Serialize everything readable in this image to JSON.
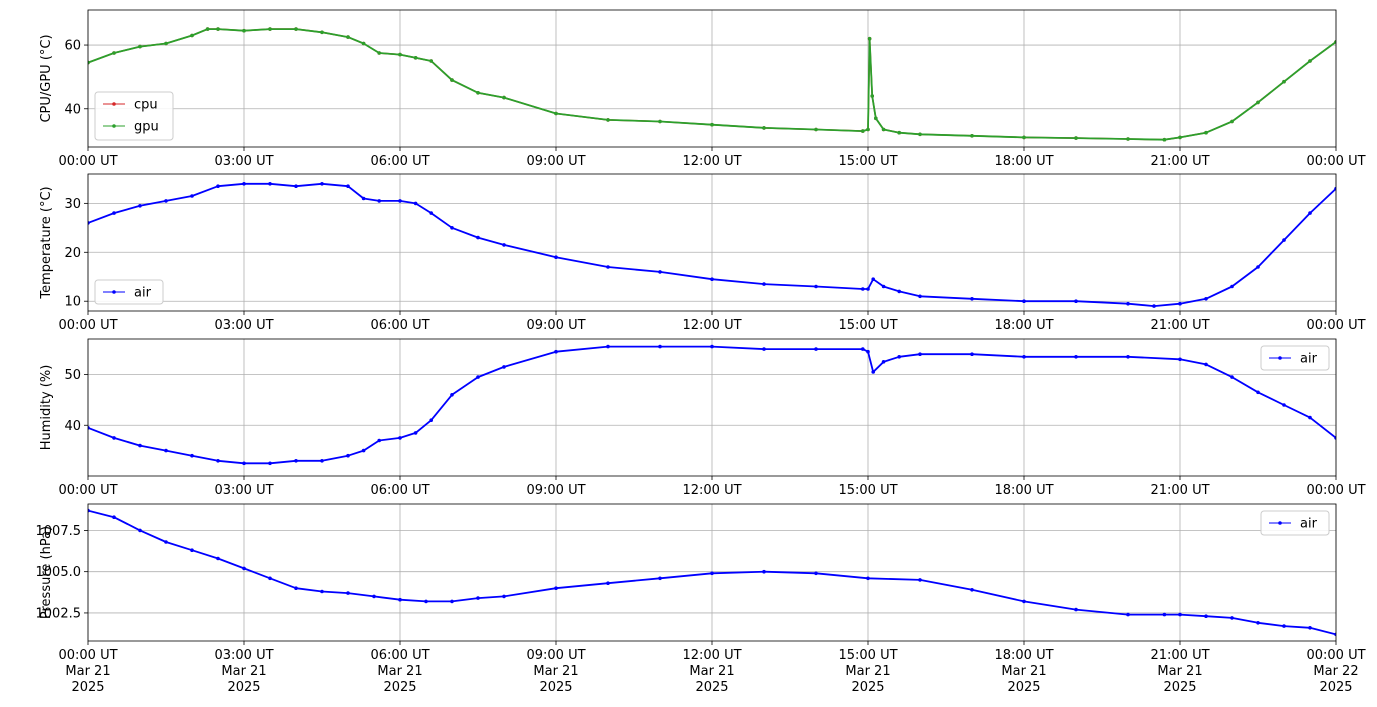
{
  "chart_data": [
    {
      "type": "line",
      "ylabel": "CPU/GPU (°C)",
      "ylim": [
        28,
        71
      ],
      "yticks": [
        40,
        60
      ],
      "grid": true,
      "legend_loc": "lower-left",
      "x_tick_labels": [
        "00:00 UT",
        "03:00 UT",
        "06:00 UT",
        "09:00 UT",
        "12:00 UT",
        "15:00 UT",
        "18:00 UT",
        "21:00 UT",
        "00:00 UT"
      ],
      "series": [
        {
          "name": "cpu",
          "color": "#d62728",
          "marker": "dot",
          "x": [
            0,
            0.5,
            1,
            1.5,
            2,
            2.3,
            2.5,
            3,
            3.5,
            4,
            4.5,
            5,
            5.3,
            5.6,
            6,
            6.3,
            6.6,
            7,
            7.5,
            8,
            9,
            10,
            11,
            12,
            13,
            14,
            14.9,
            15.0,
            15.03,
            15.08,
            15.15,
            15.3,
            15.6,
            16,
            17,
            18,
            19,
            20,
            20.7,
            21,
            21.5,
            22,
            22.5,
            23,
            23.5,
            24
          ],
          "y": [
            54.5,
            57.5,
            59.5,
            60.5,
            63,
            65,
            65,
            64.5,
            65,
            65,
            64,
            62.5,
            60.5,
            57.5,
            57,
            56,
            55,
            49,
            45,
            43.5,
            38.5,
            36.5,
            36,
            35,
            34,
            33.5,
            33,
            33.5,
            62,
            44,
            37,
            33.5,
            32.5,
            32,
            31.5,
            31,
            30.8,
            30.5,
            30.3,
            31,
            32.5,
            36,
            42,
            48.5,
            55,
            61
          ]
        },
        {
          "name": "gpu",
          "color": "#2ca02c",
          "marker": "dot",
          "x": [
            0,
            0.5,
            1,
            1.5,
            2,
            2.3,
            2.5,
            3,
            3.5,
            4,
            4.5,
            5,
            5.3,
            5.6,
            6,
            6.3,
            6.6,
            7,
            7.5,
            8,
            9,
            10,
            11,
            12,
            13,
            14,
            14.9,
            15.0,
            15.03,
            15.08,
            15.15,
            15.3,
            15.6,
            16,
            17,
            18,
            19,
            20,
            20.7,
            21,
            21.5,
            22,
            22.5,
            23,
            23.5,
            24
          ],
          "y": [
            54.5,
            57.5,
            59.5,
            60.5,
            63,
            65,
            65,
            64.5,
            65,
            65,
            64,
            62.5,
            60.5,
            57.5,
            57,
            56,
            55,
            49,
            45,
            43.5,
            38.5,
            36.5,
            36,
            35,
            34,
            33.5,
            33,
            33.5,
            62,
            44,
            37,
            33.5,
            32.5,
            32,
            31.5,
            31,
            30.8,
            30.5,
            30.3,
            31,
            32.5,
            36,
            42,
            48.5,
            55,
            61
          ]
        }
      ]
    },
    {
      "type": "line",
      "ylabel": "Temperature (°C)",
      "ylim": [
        8,
        36
      ],
      "yticks": [
        10,
        20,
        30
      ],
      "grid": true,
      "legend_loc": "lower-left",
      "x_tick_labels": [
        "00:00 UT",
        "03:00 UT",
        "06:00 UT",
        "09:00 UT",
        "12:00 UT",
        "15:00 UT",
        "18:00 UT",
        "21:00 UT",
        "00:00 UT"
      ],
      "series": [
        {
          "name": "air",
          "color": "#0000ff",
          "marker": "dot",
          "x": [
            0,
            0.5,
            1,
            1.5,
            2,
            2.5,
            3,
            3.5,
            4,
            4.5,
            5,
            5.3,
            5.6,
            6,
            6.3,
            6.6,
            7,
            7.5,
            8,
            9,
            10,
            11,
            12,
            13,
            14,
            14.9,
            15.0,
            15.1,
            15.3,
            15.6,
            16,
            17,
            18,
            19,
            20,
            20.5,
            21,
            21.5,
            22,
            22.5,
            23,
            23.5,
            24
          ],
          "y": [
            26,
            28,
            29.5,
            30.5,
            31.5,
            33.5,
            34,
            34,
            33.5,
            34,
            33.5,
            31,
            30.5,
            30.5,
            30,
            28,
            25,
            23,
            21.5,
            19,
            17,
            16,
            14.5,
            13.5,
            13,
            12.5,
            12.5,
            14.5,
            13,
            12,
            11,
            10.5,
            10,
            10,
            9.5,
            9,
            9.5,
            10.5,
            13,
            17,
            22.5,
            28,
            33
          ]
        }
      ]
    },
    {
      "type": "line",
      "ylabel": "Humidity (%)",
      "ylim": [
        30,
        57
      ],
      "yticks": [
        40,
        50
      ],
      "grid": true,
      "legend_loc": "upper-right",
      "x_tick_labels": [
        "00:00 UT",
        "03:00 UT",
        "06:00 UT",
        "09:00 UT",
        "12:00 UT",
        "15:00 UT",
        "18:00 UT",
        "21:00 UT",
        "00:00 UT"
      ],
      "series": [
        {
          "name": "air",
          "color": "#0000ff",
          "marker": "dot",
          "x": [
            0,
            0.5,
            1,
            1.5,
            2,
            2.5,
            3,
            3.5,
            4,
            4.5,
            5,
            5.3,
            5.6,
            6,
            6.3,
            6.6,
            7,
            7.5,
            8,
            9,
            10,
            11,
            12,
            13,
            14,
            14.9,
            15.0,
            15.1,
            15.3,
            15.6,
            16,
            17,
            18,
            19,
            20,
            21,
            21.5,
            22,
            22.5,
            23,
            23.5,
            24
          ],
          "y": [
            39.5,
            37.5,
            36,
            35,
            34,
            33,
            32.5,
            32.5,
            33,
            33,
            34,
            35,
            37,
            37.5,
            38.5,
            41,
            46,
            49.5,
            51.5,
            54.5,
            55.5,
            55.5,
            55.5,
            55,
            55,
            55,
            54.5,
            50.5,
            52.5,
            53.5,
            54,
            54,
            53.5,
            53.5,
            53.5,
            53,
            52,
            49.5,
            46.5,
            44,
            41.5,
            37.5
          ]
        }
      ]
    },
    {
      "type": "line",
      "ylabel": "Pressure (hPa)",
      "ylim": [
        1000.8,
        1009.1
      ],
      "yticks": [
        1002.5,
        1005.0,
        1007.5
      ],
      "ytick_labels": [
        "1002.5",
        "1005.0",
        "1007.5"
      ],
      "grid": true,
      "legend_loc": "upper-right",
      "x_tick_labels": [
        "00:00 UT\nMar 21\n2025",
        "03:00 UT\nMar 21\n2025",
        "06:00 UT\nMar 21\n2025",
        "09:00 UT\nMar 21\n2025",
        "12:00 UT\nMar 21\n2025",
        "15:00 UT\nMar 21\n2025",
        "18:00 UT\nMar 21\n2025",
        "21:00 UT\nMar 21\n2025",
        "00:00 UT\nMar 22\n2025"
      ],
      "series": [
        {
          "name": "air",
          "color": "#0000ff",
          "marker": "dot",
          "x": [
            0,
            0.5,
            1,
            1.5,
            2,
            2.5,
            3,
            3.5,
            4,
            4.5,
            5,
            5.5,
            6,
            6.5,
            7,
            7.5,
            8,
            9,
            10,
            11,
            12,
            13,
            14,
            15,
            16,
            17,
            18,
            19,
            20,
            20.7,
            21,
            21.5,
            22,
            22.5,
            23,
            23.5,
            24
          ],
          "y": [
            1008.7,
            1008.3,
            1007.5,
            1006.8,
            1006.3,
            1005.8,
            1005.2,
            1004.6,
            1004.0,
            1003.8,
            1003.7,
            1003.5,
            1003.3,
            1003.2,
            1003.2,
            1003.4,
            1003.5,
            1004.0,
            1004.3,
            1004.6,
            1004.9,
            1005.0,
            1004.9,
            1004.6,
            1004.5,
            1003.9,
            1003.2,
            1002.7,
            1002.4,
            1002.4,
            1002.4,
            1002.3,
            1002.2,
            1001.9,
            1001.7,
            1001.6,
            1001.2
          ]
        }
      ]
    }
  ]
}
